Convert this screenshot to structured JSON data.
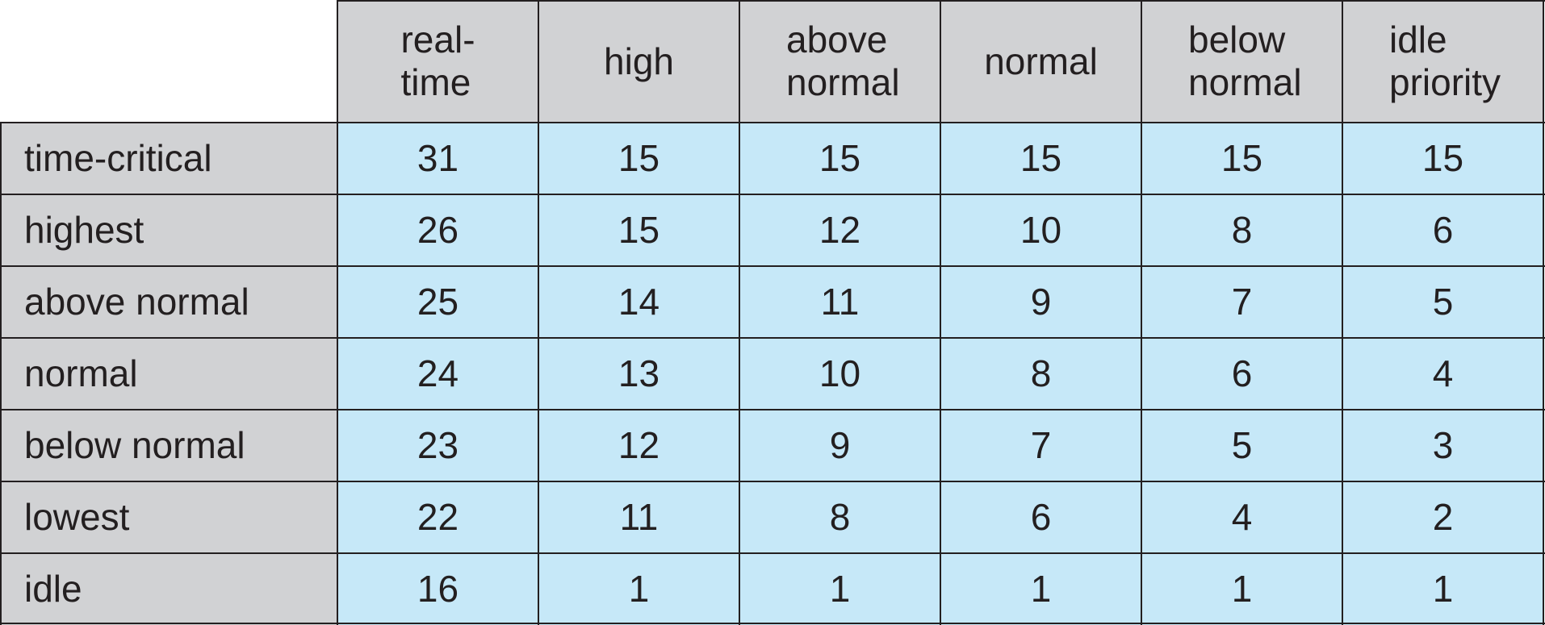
{
  "table": {
    "columns": [
      "real-\ntime",
      "high",
      "above\nnormal",
      "normal",
      "below\nnormal",
      "idle\npriority"
    ],
    "rows": [
      {
        "label": "time-critical",
        "values": [
          "31",
          "15",
          "15",
          "15",
          "15",
          "15"
        ]
      },
      {
        "label": "highest",
        "values": [
          "26",
          "15",
          "12",
          "10",
          "8",
          "6"
        ]
      },
      {
        "label": "above normal",
        "values": [
          "25",
          "14",
          "11",
          "9",
          "7",
          "5"
        ]
      },
      {
        "label": "normal",
        "values": [
          "24",
          "13",
          "10",
          "8",
          "6",
          "4"
        ]
      },
      {
        "label": "below normal",
        "values": [
          "23",
          "12",
          "9",
          "7",
          "5",
          "3"
        ]
      },
      {
        "label": "lowest",
        "values": [
          "22",
          "11",
          "8",
          "6",
          "4",
          "2"
        ]
      },
      {
        "label": "idle",
        "values": [
          "16",
          "1",
          "1",
          "1",
          "1",
          "1"
        ]
      }
    ]
  },
  "colors": {
    "header_fill": "#d1d2d4",
    "value_fill": "#c6e8f8",
    "grid_line": "#231f20",
    "text": "#231f20"
  }
}
